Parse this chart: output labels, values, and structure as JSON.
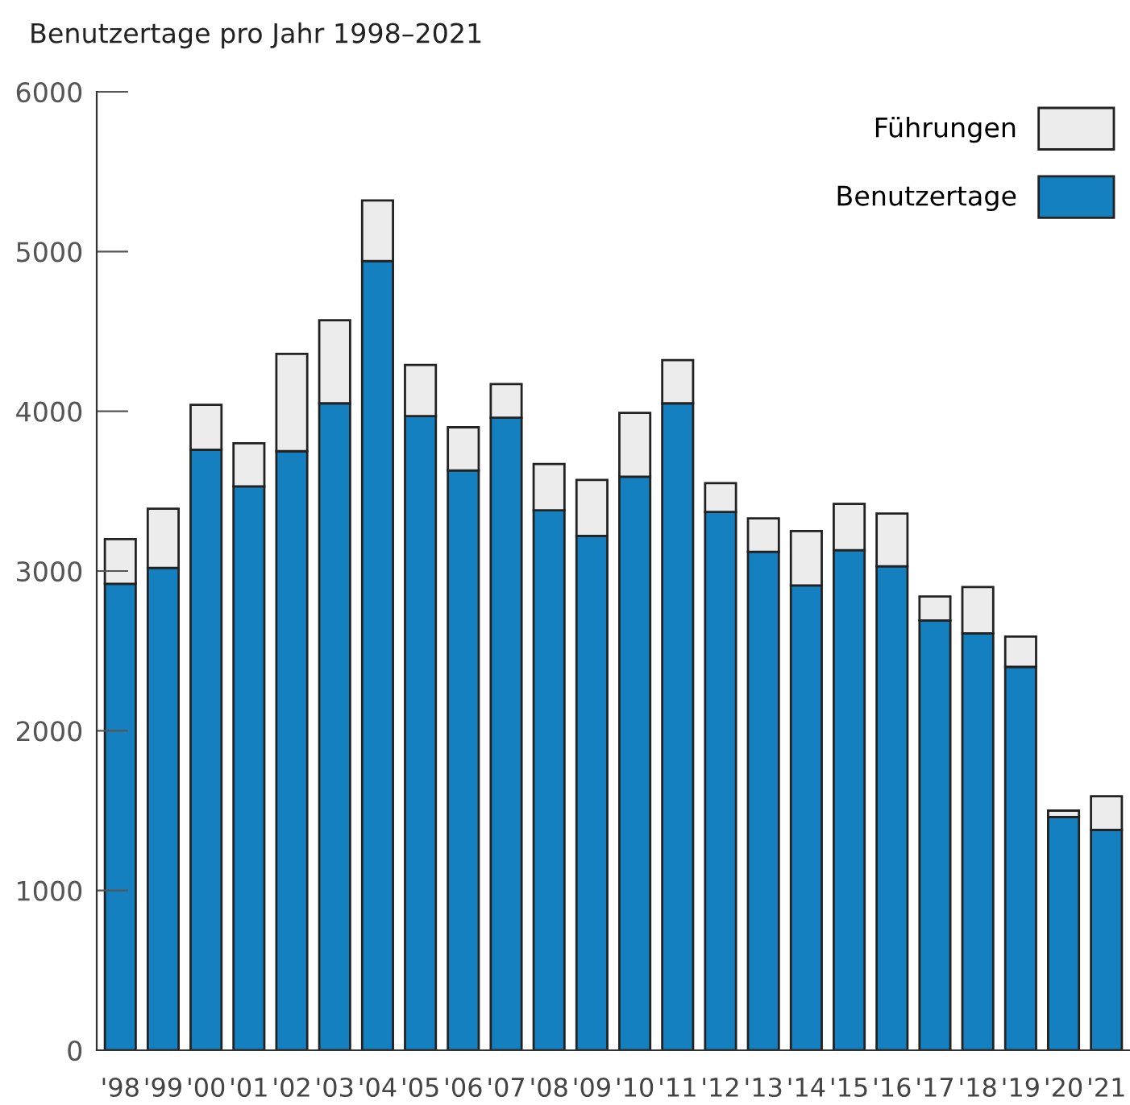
{
  "chart_data": {
    "type": "bar",
    "title": "Benutzertage pro Jahr 1998–2021",
    "stacked": true,
    "categories": [
      "'98",
      "'99",
      "'00",
      "'01",
      "'02",
      "'03",
      "'04",
      "'05",
      "'06",
      "'07",
      "'08",
      "'09",
      "'10",
      "'11",
      "'12",
      "'13",
      "'14",
      "'15",
      "'16",
      "'17",
      "'18",
      "'19",
      "'20",
      "'21"
    ],
    "series": [
      {
        "name": "Benutzertage",
        "color": "#1580c0",
        "values": [
          2920,
          3020,
          3760,
          3530,
          3750,
          4050,
          4940,
          3970,
          3630,
          3960,
          3380,
          3220,
          3590,
          4050,
          3370,
          3120,
          2910,
          3130,
          3030,
          2690,
          2610,
          2400,
          1460,
          1380
        ]
      },
      {
        "name": "Führungen",
        "color": "#ececec",
        "values": [
          280,
          370,
          280,
          270,
          610,
          520,
          380,
          320,
          270,
          210,
          290,
          350,
          400,
          270,
          180,
          210,
          340,
          290,
          330,
          150,
          290,
          190,
          40,
          210
        ]
      }
    ],
    "ylim": [
      0,
      6000
    ],
    "yticks": [
      0,
      1000,
      2000,
      3000,
      4000,
      5000,
      6000
    ],
    "grid": false,
    "legend": "top right"
  }
}
